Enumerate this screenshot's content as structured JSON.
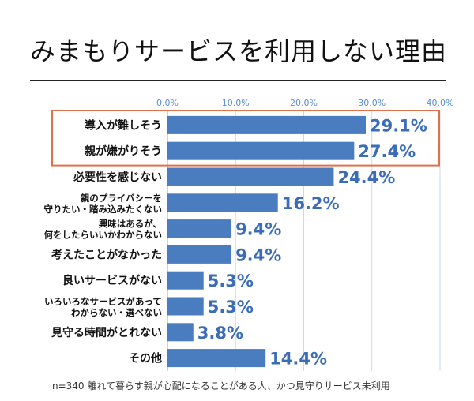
{
  "chart_data": {
    "type": "bar",
    "orientation": "horizontal",
    "title": "みまもりサービスを利用しない理由",
    "categories": [
      [
        "導入が難しそう"
      ],
      [
        "親が嫌がりそう"
      ],
      [
        "必要性を感じない"
      ],
      [
        "親のプライバシーを",
        "守りたい・踏み込みたくない"
      ],
      [
        "興味はあるが、",
        "何をしたらいいかわからない"
      ],
      [
        "考えたことがなかった"
      ],
      [
        "良いサービスがない"
      ],
      [
        "いろいろなサービスがあって",
        "わからない・選べない"
      ],
      [
        "見守る時間がとれない"
      ],
      [
        "その他"
      ]
    ],
    "values": [
      29.1,
      27.4,
      24.4,
      16.2,
      9.4,
      9.4,
      5.3,
      5.3,
      3.8,
      14.4
    ],
    "value_labels": [
      "29.1%",
      "27.4%",
      "24.4%",
      "16.2%",
      "9.4%",
      "9.4%",
      "5.3%",
      "5.3%",
      "3.8%",
      "14.4%"
    ],
    "xlim": [
      0,
      40
    ],
    "ticks": [
      0,
      10,
      20,
      30,
      40
    ],
    "tick_labels": [
      "0.0%",
      "10.0%",
      "20.0%",
      "30.0%",
      "40.0%"
    ],
    "highlighted_indices": [
      0,
      1
    ],
    "grid": true,
    "bar_color": "#4a7cc0",
    "label_color": "#3a6cb8",
    "tick_color": "#5b8fd0",
    "highlight_color": "#e0714b",
    "footnote": "n=340 離れて暮らす親が心配になることがある人、かつ見守りサービス未利用"
  }
}
